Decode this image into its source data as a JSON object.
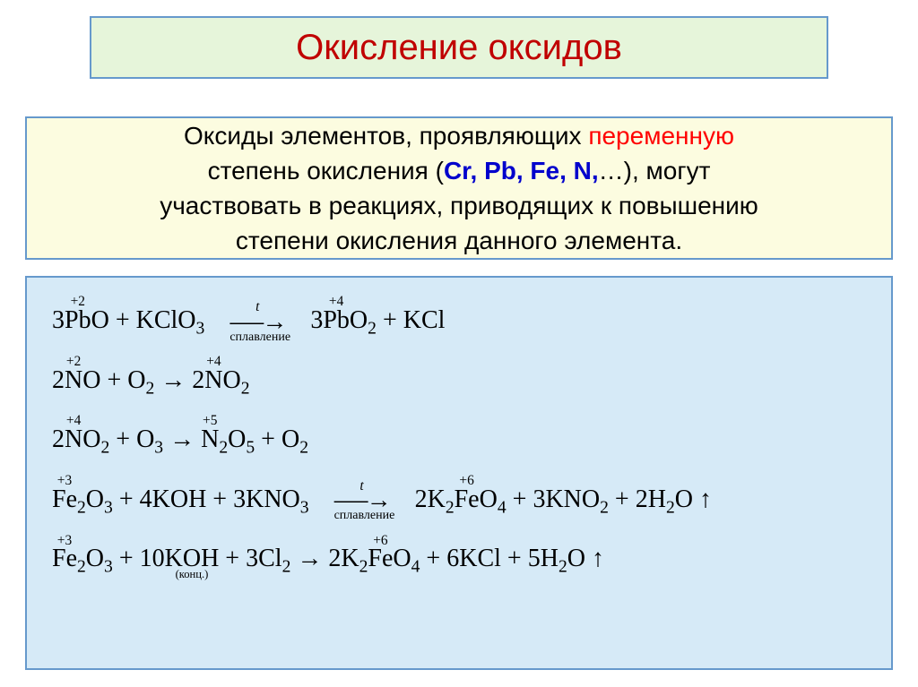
{
  "title": {
    "text": "Окисление оксидов",
    "text_color": "#c00000",
    "bg_color": "#e6f5da",
    "border_color": "#6699cc",
    "font_size": 40
  },
  "description": {
    "bg_color": "#fcfce0",
    "border_color": "#6699cc",
    "text_color": "#000000",
    "variable_color": "#ff0000",
    "elements_color": "#0000cc",
    "line1_pre": "Оксиды элементов, проявляющих ",
    "line1_var": "переменную",
    "line2_pre": "степень окисления (",
    "line2_elems": "Cr, Pb, Fe, N,",
    "line2_post": "…), могут",
    "line3": "участвовать в реакциях, приводящих к повышению",
    "line4": "степени окисления данного элемента."
  },
  "equations": {
    "bg_color": "#d6eaf7",
    "border_color": "#6699cc",
    "text_color": "#000000",
    "font_size": 28,
    "arrow_label_t": "t",
    "arrow_label_fusion": "сплавление",
    "arrow_label_conc": "(конц.)",
    "ox_plus2": "+2",
    "ox_plus3": "+3",
    "ox_plus4": "+4",
    "ox_plus5": "+5",
    "ox_plus6": "+6",
    "eq1": {
      "lhs_coef1": "3",
      "lhs_el1": "Pb",
      "lhs_el1b": "O",
      "lhs_plus": " + ",
      "lhs_el2": "KClO",
      "lhs_el2_sub": "3",
      "rhs_coef1": "3",
      "rhs_el1": "Pb",
      "rhs_el1b": "O",
      "rhs_el1b_sub": "2",
      "rhs_el2": "KCl"
    },
    "eq2": {
      "lhs_coef1": "2",
      "lhs_el1": "N",
      "lhs_el1b": "O",
      "lhs_el2": "O",
      "lhs_el2_sub": "2",
      "rhs_coef1": "2",
      "rhs_el1": "N",
      "rhs_el1b": "O",
      "rhs_el1b_sub": "2"
    },
    "eq3": {
      "lhs_coef1": "2",
      "lhs_el1": "N",
      "lhs_el1b": "O",
      "lhs_el1b_sub": "2",
      "lhs_el2": "O",
      "lhs_el2_sub": "3",
      "rhs_el1": "N",
      "rhs_el1_sub": "2",
      "rhs_el1b": "O",
      "rhs_el1b_sub": "5",
      "rhs_el2": "O",
      "rhs_el2_sub": "2"
    },
    "eq4": {
      "lhs_el1": "Fe",
      "lhs_el1_sub": "2",
      "lhs_el1b": "O",
      "lhs_el1b_sub": "3",
      "lhs_coef2": "4",
      "lhs_el2": "KOH",
      "lhs_coef3": "3",
      "lhs_el3": "KNO",
      "lhs_el3_sub": "3",
      "rhs_coef1": "2",
      "rhs_el1": "K",
      "rhs_el1_sub": "2",
      "rhs_el1b": "Fe",
      "rhs_el1c": "O",
      "rhs_el1c_sub": "4",
      "rhs_coef2": "3",
      "rhs_el2": "KNO",
      "rhs_el2_sub": "2",
      "rhs_coef3": "2",
      "rhs_el3": "H",
      "rhs_el3_sub": "2",
      "rhs_el3b": "O"
    },
    "eq5": {
      "lhs_el1": "Fe",
      "lhs_el1_sub": "2",
      "lhs_el1b": "O",
      "lhs_el1b_sub": "3",
      "lhs_coef2": "10",
      "lhs_el2": "KOH",
      "lhs_coef3": "3",
      "lhs_el3": "Cl",
      "lhs_el3_sub": "2",
      "rhs_coef1": "2",
      "rhs_el1": "K",
      "rhs_el1_sub": "2",
      "rhs_el1b": "Fe",
      "rhs_el1c": "O",
      "rhs_el1c_sub": "4",
      "rhs_coef2": "6",
      "rhs_el2": "KCl",
      "rhs_coef3": "5",
      "rhs_el3": "H",
      "rhs_el3_sub": "2",
      "rhs_el3b": "O"
    }
  }
}
